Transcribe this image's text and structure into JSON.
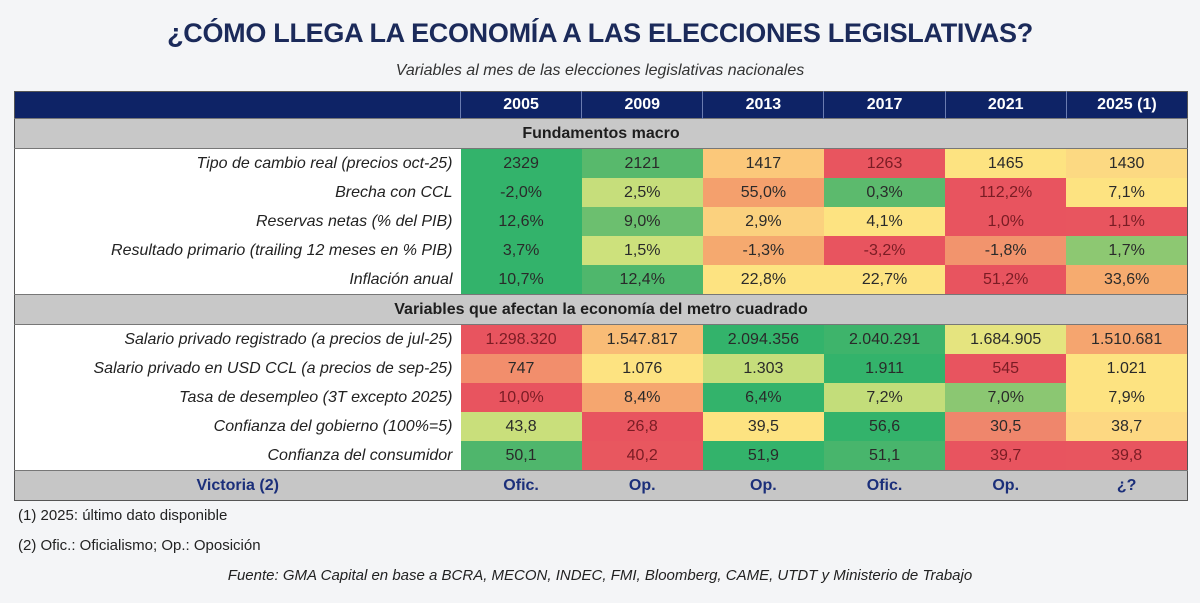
{
  "title": "¿CÓMO LLEGA LA ECONOMÍA A LAS ELECCIONES LEGISLATIVAS?",
  "subtitle": "Variables al mes de las elecciones legislativas nacionales",
  "chart_data": {
    "type": "table",
    "columns": [
      "2005",
      "2009",
      "2013",
      "2017",
      "2021",
      "2025 (1)"
    ],
    "sections": [
      {
        "title": "Fundamentos macro",
        "rows": [
          {
            "label": "Tipo de cambio real (precios oct-25)",
            "values": [
              "2329",
              "2121",
              "1417",
              "1263",
              "1465",
              "1430"
            ],
            "colors": [
              "#33b36b",
              "#58b96c",
              "#fbc87a",
              "#e8555f",
              "#fde381",
              "#fcd982"
            ]
          },
          {
            "label": "Brecha con CCL",
            "values": [
              "-2,0%",
              "2,5%",
              "55,0%",
              "0,3%",
              "112,2%",
              "7,1%"
            ],
            "colors": [
              "#33b36b",
              "#c6de7b",
              "#f4a06d",
              "#5cba6d",
              "#e8545f",
              "#fde381"
            ]
          },
          {
            "label": "Reservas netas (% del PIB)",
            "values": [
              "12,6%",
              "9,0%",
              "2,9%",
              "4,1%",
              "1,0%",
              "1,1%"
            ],
            "colors": [
              "#33b36b",
              "#6cbf6f",
              "#fbd17e",
              "#fde381",
              "#e8545f",
              "#e8555f"
            ]
          },
          {
            "label": "Resultado primario (trailing 12 meses en % PIB)",
            "values": [
              "3,7%",
              "1,5%",
              "-1,3%",
              "-3,2%",
              "-1,8%",
              "1,7%"
            ],
            "colors": [
              "#33b36b",
              "#cde17c",
              "#f5a96f",
              "#e8545f",
              "#f2946d",
              "#8dc872"
            ]
          },
          {
            "label": "Inflación anual",
            "values": [
              "10,7%",
              "12,4%",
              "22,8%",
              "22,7%",
              "51,2%",
              "33,6%"
            ],
            "colors": [
              "#33b36b",
              "#4fb76c",
              "#fde381",
              "#fde381",
              "#e8545f",
              "#f6ab6f"
            ]
          }
        ]
      },
      {
        "title": "Variables que afectan la economía del metro cuadrado",
        "rows": [
          {
            "label": "Salario privado registrado (a precios de jul-25)",
            "values": [
              "1.298.320",
              "1.547.817",
              "2.094.356",
              "2.040.291",
              "1.684.905",
              "1.510.681"
            ],
            "colors": [
              "#e8545f",
              "#f9bc76",
              "#33b36b",
              "#3eb46b",
              "#e5e47f",
              "#f5a56f"
            ]
          },
          {
            "label": "Salario privado en USD CCL (a precios de sep-25)",
            "values": [
              "747",
              "1.076",
              "1.303",
              "1.911",
              "545",
              "1.021"
            ],
            "colors": [
              "#f28e6c",
              "#fde381",
              "#c6de7b",
              "#33b36b",
              "#e8545f",
              "#fde381"
            ]
          },
          {
            "label": "Tasa de desempleo (3T excepto 2025)",
            "values": [
              "10,0%",
              "8,4%",
              "6,4%",
              "7,2%",
              "7,0%",
              "7,9%"
            ],
            "colors": [
              "#e8545f",
              "#f5a66f",
              "#33b36b",
              "#c3dd7a",
              "#8bc772",
              "#fde381"
            ]
          },
          {
            "label": "Confianza del gobierno (100%=5)",
            "values": [
              "43,8",
              "26,8",
              "39,5",
              "56,6",
              "30,5",
              "38,7"
            ],
            "colors": [
              "#c9df7b",
              "#e8545f",
              "#fde381",
              "#33b36b",
              "#ef866c",
              "#fdd882"
            ]
          },
          {
            "label": "Confianza del consumidor",
            "values": [
              "50,1",
              "40,2",
              "51,9",
              "51,1",
              "39,7",
              "39,8"
            ],
            "colors": [
              "#4fb66c",
              "#e8575f",
              "#33b36b",
              "#48b56c",
              "#e8545f",
              "#e8555f"
            ]
          }
        ]
      }
    ],
    "victory": {
      "label": "Victoria (2)",
      "values": [
        "Ofic.",
        "Op.",
        "Op.",
        "Ofic.",
        "Op.",
        "¿?"
      ]
    }
  },
  "footnotes": [
    "(1) 2025: último dato disponible",
    "(2) Ofic.: Oficialismo; Op.: Oposición"
  ],
  "source": "Fuente: GMA Capital en base a BCRA, MECON, INDEC, FMI, Bloomberg, CAME, UTDT y Ministerio de Trabajo"
}
